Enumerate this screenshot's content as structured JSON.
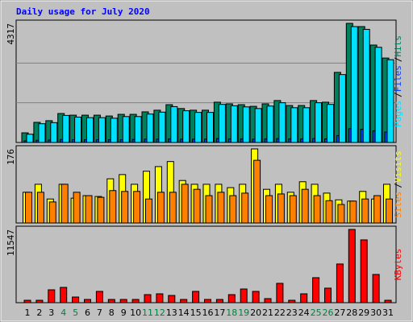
{
  "title": "Daily usage for July 2020",
  "legend_separator": "/",
  "chart_data": [
    {
      "type": "bar",
      "ylim": [
        0,
        4317
      ],
      "yticks": [
        4317
      ],
      "series": [
        {
          "name": "Pages",
          "color": "#00e0ff",
          "values": [
            300,
            680,
            720,
            980,
            920,
            900,
            900,
            880,
            940,
            940,
            1030,
            1100,
            1300,
            1150,
            1090,
            1090,
            1380,
            1330,
            1290,
            1230,
            1320,
            1440,
            1260,
            1260,
            1440,
            1380,
            2460,
            4200,
            4100,
            3450,
            3000
          ]
        },
        {
          "name": "Files",
          "color": "#0040ff",
          "values": [
            60,
            80,
            90,
            110,
            100,
            100,
            100,
            100,
            100,
            110,
            120,
            120,
            130,
            120,
            120,
            120,
            140,
            130,
            130,
            120,
            130,
            140,
            130,
            130,
            140,
            130,
            250,
            500,
            480,
            420,
            380
          ]
        },
        {
          "name": "Hits",
          "color": "#00805c",
          "values": [
            350,
            730,
            790,
            1050,
            990,
            990,
            990,
            960,
            1020,
            1020,
            1110,
            1170,
            1370,
            1230,
            1170,
            1170,
            1460,
            1400,
            1370,
            1310,
            1400,
            1520,
            1340,
            1340,
            1520,
            1460,
            2540,
            4317,
            4200,
            3530,
            3060
          ]
        }
      ]
    },
    {
      "type": "bar",
      "ylim": [
        0,
        176
      ],
      "yticks": [
        176
      ],
      "series": [
        {
          "name": "Sites",
          "color": "#ff8000",
          "values": [
            73,
            73,
            50,
            92,
            73,
            65,
            61,
            77,
            75,
            75,
            57,
            73,
            73,
            92,
            80,
            65,
            73,
            65,
            71,
            149,
            65,
            69,
            65,
            80,
            65,
            53,
            44,
            52,
            57,
            65,
            57
          ]
        },
        {
          "name": "Visits",
          "color": "#ffff00",
          "values": [
            73,
            92,
            57,
            92,
            59,
            65,
            63,
            105,
            115,
            92,
            123,
            134,
            146,
            101,
            92,
            92,
            92,
            84,
            92,
            176,
            80,
            92,
            73,
            98,
            92,
            71,
            55,
            52,
            75,
            57,
            92
          ]
        }
      ]
    },
    {
      "type": "bar",
      "ylim": [
        0,
        11547
      ],
      "yticks": [
        11547
      ],
      "categories": [
        "1",
        "2",
        "3",
        "4",
        "5",
        "6",
        "7",
        "8",
        "9",
        "10",
        "11",
        "12",
        "13",
        "14",
        "15",
        "16",
        "17",
        "18",
        "19",
        "20",
        "21",
        "22",
        "23",
        "24",
        "25",
        "26",
        "27",
        "28",
        "29",
        "30",
        "31"
      ],
      "category_colors": [
        "#000000",
        "#000000",
        "#000000",
        "#008040",
        "#008040",
        "#000000",
        "#000000",
        "#000000",
        "#000000",
        "#000000",
        "#008040",
        "#008040",
        "#000000",
        "#000000",
        "#000000",
        "#000000",
        "#000000",
        "#008040",
        "#008040",
        "#000000",
        "#000000",
        "#000000",
        "#000000",
        "#000000",
        "#008040",
        "#008040",
        "#000000",
        "#000000",
        "#000000",
        "#000000",
        "#000000"
      ],
      "series": [
        {
          "name": "KBytes",
          "color": "#ff0000",
          "values": [
            380,
            380,
            2030,
            2410,
            890,
            510,
            1780,
            510,
            510,
            510,
            1270,
            1400,
            1140,
            510,
            1780,
            510,
            510,
            1270,
            2160,
            1780,
            640,
            3050,
            380,
            1400,
            3940,
            2290,
            6100,
            11547,
            9900,
            4450,
            380
          ]
        }
      ]
    }
  ]
}
